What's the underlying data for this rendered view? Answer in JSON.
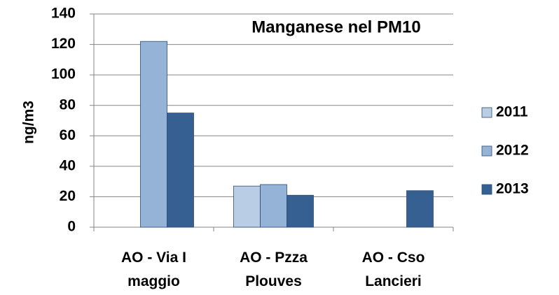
{
  "chart_data": {
    "type": "bar",
    "title": "Manganese nel PM10",
    "y_label": "ng/m3",
    "categories": [
      "AO - Via I maggio",
      "AO - Pzza Plouves",
      "AO - Cso Lancieri"
    ],
    "series": [
      {
        "name": "2011",
        "color": "#b9cde5",
        "values": [
          null,
          27,
          null
        ]
      },
      {
        "name": "2012",
        "color": "#95b3d7",
        "values": [
          122,
          28,
          null
        ]
      },
      {
        "name": "2013",
        "color": "#376092",
        "values": [
          75,
          21,
          24
        ]
      }
    ],
    "ylim": [
      0,
      140
    ],
    "yticks": [
      0,
      20,
      40,
      60,
      80,
      100,
      120,
      140
    ],
    "grid": true,
    "legend": "right"
  }
}
